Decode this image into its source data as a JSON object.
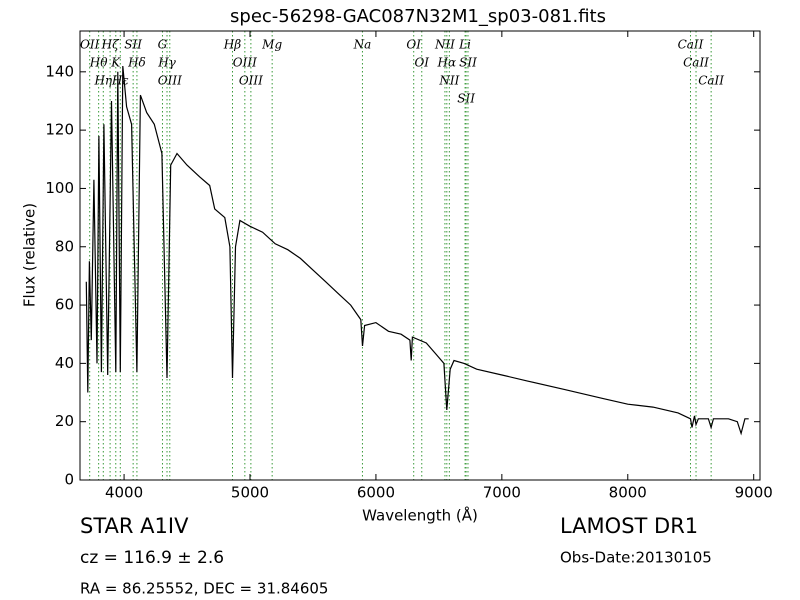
{
  "chart_data": {
    "type": "line",
    "title": "spec-56298-GAC087N32M1_sp03-081.fits",
    "x_label": "Wavelength (Å)",
    "y_label": "Flux (relative)",
    "xlim": [
      3650,
      9050
    ],
    "ylim": [
      0,
      154
    ],
    "xticks": [
      4000,
      5000,
      6000,
      7000,
      8000,
      9000
    ],
    "yticks": [
      0,
      20,
      40,
      60,
      80,
      100,
      120,
      140
    ],
    "color": "#000000",
    "x": [
      3700,
      3712,
      3725,
      3740,
      3760,
      3785,
      3800,
      3820,
      3840,
      3870,
      3900,
      3934,
      3950,
      3970,
      3990,
      4020,
      4060,
      4102,
      4130,
      4180,
      4240,
      4300,
      4341,
      4370,
      4420,
      4500,
      4600,
      4680,
      4720,
      4800,
      4840,
      4861,
      4885,
      4920,
      5000,
      5100,
      5200,
      5300,
      5400,
      5500,
      5600,
      5700,
      5800,
      5880,
      5893,
      5910,
      6000,
      6100,
      6200,
      6270,
      6280,
      6290,
      6400,
      6480,
      6540,
      6563,
      6590,
      6620,
      6700,
      6800,
      7000,
      7200,
      7500,
      7800,
      8000,
      8200,
      8400,
      8498,
      8510,
      8530,
      8542,
      8560,
      8640,
      8662,
      8680,
      8800,
      8870,
      8900,
      8930,
      8960
    ],
    "values": [
      68,
      30,
      75,
      48,
      103,
      40,
      118,
      37,
      122,
      36,
      130,
      37,
      140,
      37,
      142,
      128,
      122,
      37,
      132,
      126,
      122,
      112,
      35,
      108,
      112,
      108,
      104,
      101,
      93,
      90,
      80,
      35,
      80,
      89,
      87,
      85,
      81,
      79,
      76,
      72,
      68,
      64,
      60,
      55,
      46,
      53,
      54,
      51,
      50,
      48,
      41,
      49,
      47,
      43,
      40,
      24,
      38,
      41,
      40,
      38,
      36,
      34,
      31,
      28,
      26,
      25,
      23,
      21,
      18,
      22,
      19,
      21,
      21,
      18,
      21,
      21,
      20,
      16,
      21,
      21
    ],
    "annotation_color": "#3a9a3a",
    "annotations": [
      "OII",
      "Hθ",
      "Hη",
      "Hζ",
      "K",
      "Hε",
      "SII",
      "Hδ",
      "G",
      "Hγ",
      "OIII",
      "Hβ",
      "OIII",
      "OIII",
      "Mg",
      "Na",
      "OI",
      "OI",
      "NII",
      "Hα",
      "NII",
      "Li",
      "SII",
      "SII",
      "CaII",
      "CaII",
      "CaII"
    ],
    "annotation_x": [
      3727,
      3798,
      3835,
      3889,
      3934,
      3970,
      4072,
      4102,
      4305,
      4341,
      4363,
      4861,
      4959,
      5007,
      5176,
      5893,
      6300,
      6364,
      6548,
      6563,
      6583,
      6708,
      6716,
      6731,
      8498,
      8542,
      8662
    ]
  },
  "info": {
    "object": "STAR   A1IV",
    "cz": "cz = 116.9 ± 2.6",
    "coords": "RA = 86.25552, DEC = 31.84605",
    "survey": "LAMOST DR1",
    "date": "Obs-Date:20130105"
  }
}
